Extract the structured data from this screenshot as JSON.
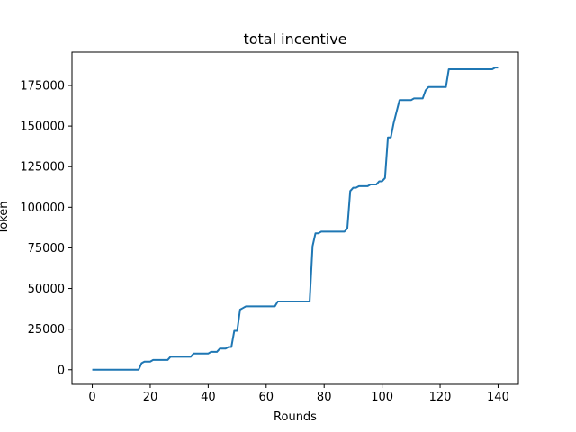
{
  "chart_data": {
    "type": "line",
    "title": "total incentive",
    "xlabel": "Rounds",
    "ylabel": "Token",
    "xlim": [
      -7,
      147
    ],
    "ylim": [
      -9000,
      195500
    ],
    "xticks": [
      0,
      20,
      40,
      60,
      80,
      100,
      120,
      140
    ],
    "yticks": [
      0,
      25000,
      50000,
      75000,
      100000,
      125000,
      150000,
      175000
    ],
    "grid": false,
    "color": "#1f77b4",
    "series": [
      {
        "x": [
          0,
          16,
          17,
          18,
          20,
          21,
          26,
          27,
          34,
          35,
          40,
          41,
          43,
          44,
          46,
          47,
          48,
          49,
          50,
          51,
          52,
          53,
          63,
          64,
          75,
          76,
          77,
          78,
          79,
          87,
          88,
          89,
          90,
          91,
          92,
          93,
          95,
          96,
          98,
          99,
          100,
          101,
          102,
          103,
          104,
          106,
          107,
          110,
          111,
          114,
          115,
          116,
          122,
          123,
          138,
          139,
          140
        ],
        "y": [
          0,
          0,
          4000,
          5000,
          5000,
          6000,
          6000,
          8000,
          8000,
          10000,
          10000,
          11000,
          11000,
          13000,
          13000,
          14000,
          14000,
          24000,
          24000,
          37000,
          38000,
          39000,
          39000,
          42000,
          42000,
          76000,
          84000,
          84000,
          85000,
          85000,
          87000,
          110000,
          112000,
          112000,
          113000,
          113000,
          113000,
          114000,
          114000,
          116000,
          116000,
          118000,
          143000,
          143000,
          152000,
          166000,
          166000,
          166000,
          167000,
          167000,
          172000,
          174000,
          174000,
          185000,
          185000,
          186000,
          186000
        ]
      }
    ]
  }
}
